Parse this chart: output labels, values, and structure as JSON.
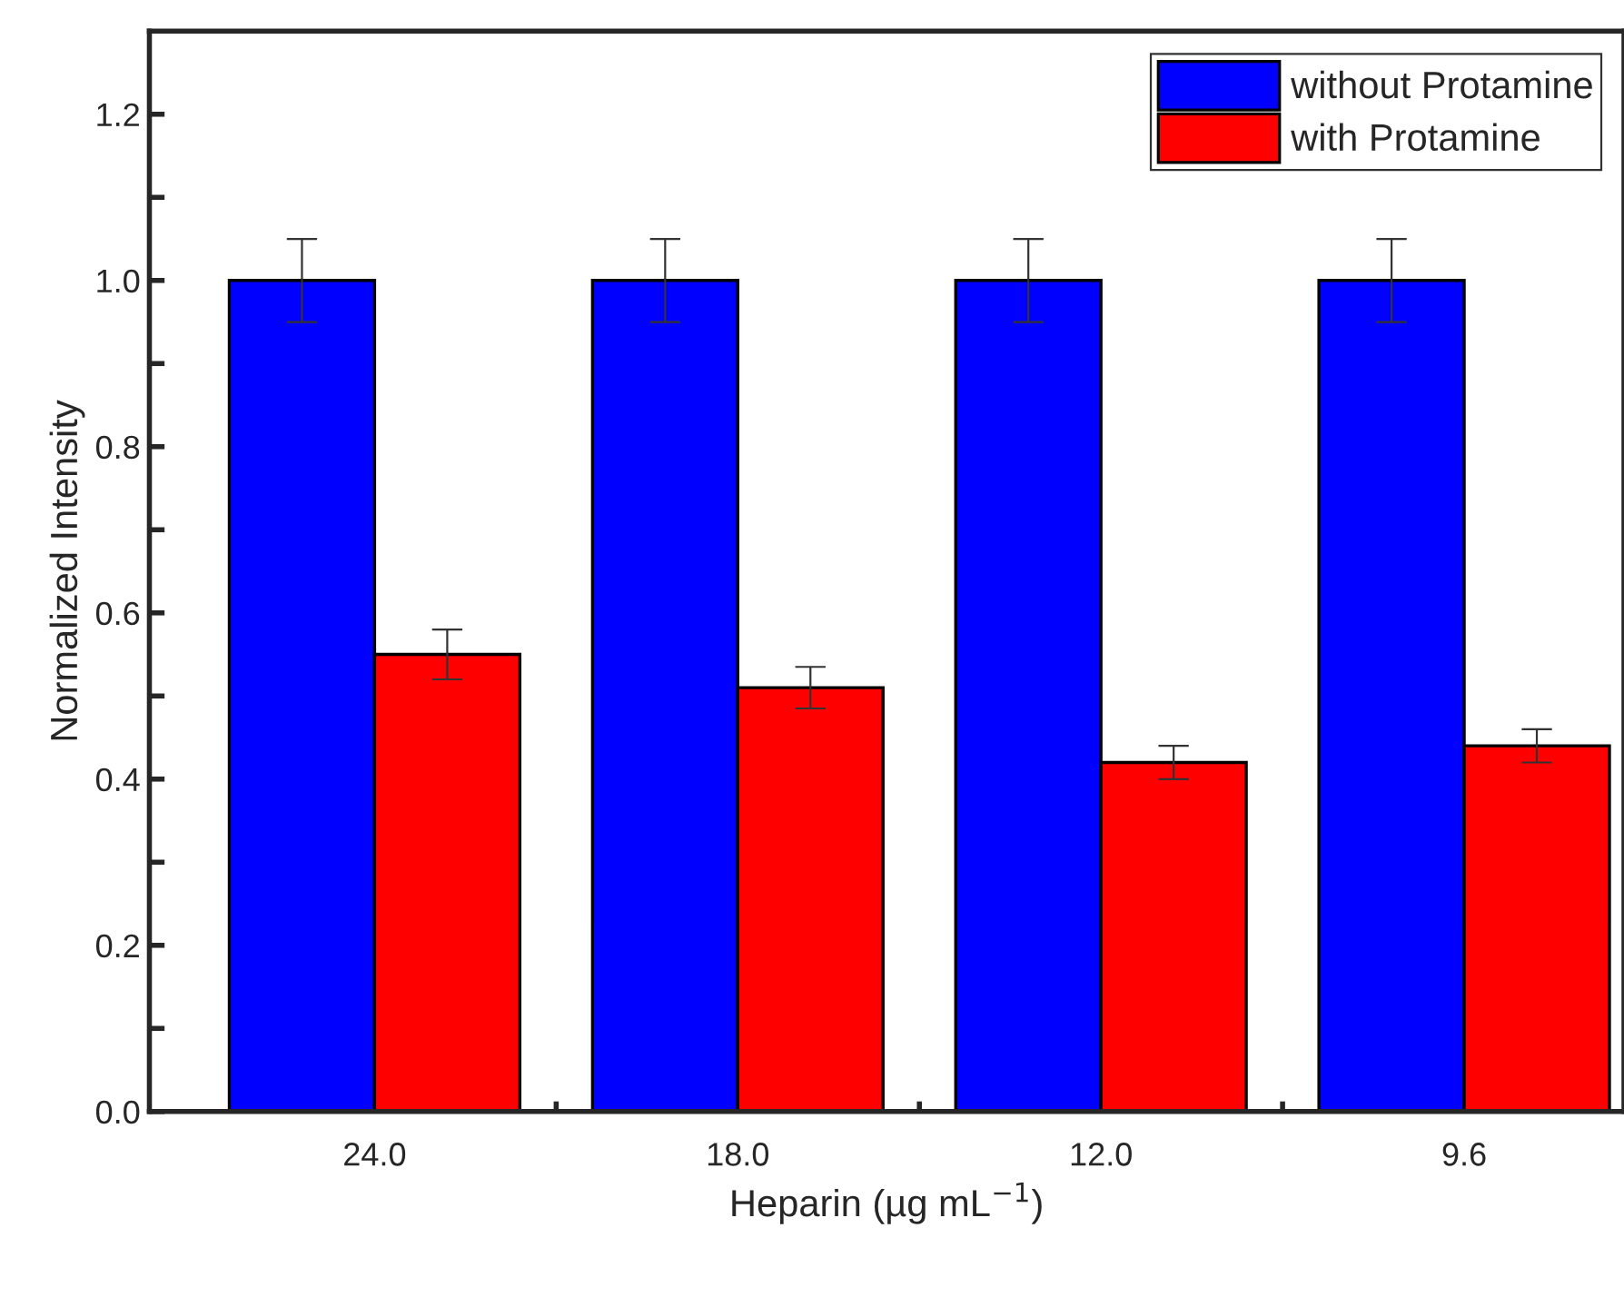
{
  "chart_data": {
    "type": "bar",
    "xlabel": "Heparin (µg mL$^{−1}$)",
    "ylabel": "Normalized Intensity",
    "categories": [
      "24.0",
      "18.0",
      "12.0",
      "9.6"
    ],
    "series": [
      {
        "name": "without Protamine",
        "color": "#0000ff",
        "values": [
          1.0,
          1.0,
          1.0,
          1.0
        ],
        "errors": [
          0.05,
          0.05,
          0.05,
          0.05
        ]
      },
      {
        "name": "with Protamine",
        "color": "#ff0000",
        "values": [
          0.55,
          0.51,
          0.42,
          0.44
        ],
        "errors": [
          0.03,
          0.025,
          0.02,
          0.02
        ]
      }
    ],
    "ylim": [
      0,
      1.3
    ],
    "yticks": [
      {
        "value": 0.0,
        "label": "0.0"
      },
      {
        "value": 0.1,
        "label": null
      },
      {
        "value": 0.2,
        "label": "0.2"
      },
      {
        "value": 0.3,
        "label": null
      },
      {
        "value": 0.4,
        "label": "0.4"
      },
      {
        "value": 0.5,
        "label": null
      },
      {
        "value": 0.6,
        "label": "0.6"
      },
      {
        "value": 0.7,
        "label": null
      },
      {
        "value": 0.8,
        "label": "0.8"
      },
      {
        "value": 0.9,
        "label": null
      },
      {
        "value": 1.0,
        "label": "1.0"
      },
      {
        "value": 1.1,
        "label": null
      },
      {
        "value": 1.2,
        "label": "1.2"
      }
    ],
    "legend": "top right",
    "grid": false
  }
}
